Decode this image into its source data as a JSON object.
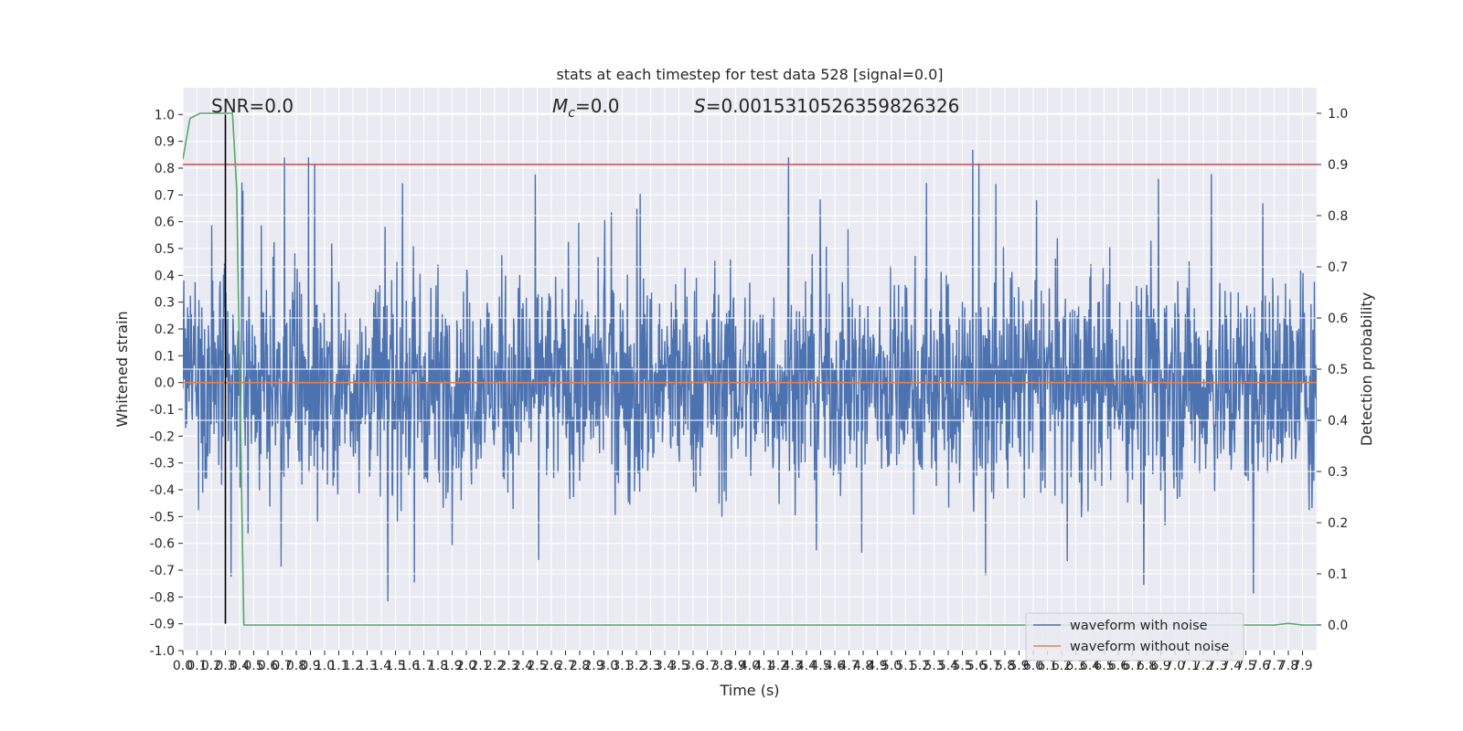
{
  "chart_data": {
    "type": "line",
    "title": "stats at each timestep for test data 528 [signal=0.0]",
    "xlabel": "Time (s)",
    "ylabel": "Whitened strain",
    "y2label": "Detection probability",
    "xlim": [
      0,
      8.0
    ],
    "ylim": [
      -1.0,
      1.1
    ],
    "y2lim": [
      -0.05,
      1.05
    ],
    "grid": true,
    "x_ticks": [
      "0.0",
      "0.1",
      "0.2",
      "0.3",
      "0.4",
      "0.5",
      "0.6",
      "0.7",
      "0.8",
      "0.9",
      "1.0",
      "1.1",
      "1.2",
      "1.3",
      "1.4",
      "1.5",
      "1.6",
      "1.7",
      "1.8",
      "1.9",
      "2.0",
      "2.1",
      "2.2",
      "2.3",
      "2.4",
      "2.5",
      "2.6",
      "2.7",
      "2.8",
      "2.9",
      "3.0",
      "3.1",
      "3.2",
      "3.3",
      "3.4",
      "3.5",
      "3.6",
      "3.7",
      "3.8",
      "3.9",
      "4.0",
      "4.1",
      "4.2",
      "4.3",
      "4.4",
      "4.5",
      "4.6",
      "4.7",
      "4.8",
      "4.9",
      "5.0",
      "5.1",
      "5.2",
      "5.3",
      "5.4",
      "5.5",
      "5.6",
      "5.7",
      "5.8",
      "5.9",
      "6.0",
      "6.1",
      "6.2",
      "6.3",
      "6.4",
      "6.5",
      "6.6",
      "6.7",
      "6.8",
      "6.9",
      "7.0",
      "7.1",
      "7.2",
      "7.3",
      "7.4",
      "7.5",
      "7.6",
      "7.7",
      "7.8",
      "7.9"
    ],
    "y_ticks": [
      "-1.0",
      "-0.9",
      "-0.8",
      "-0.7",
      "-0.6",
      "-0.5",
      "-0.4",
      "-0.3",
      "-0.2",
      "-0.1",
      "0.0",
      "0.1",
      "0.2",
      "0.3",
      "0.4",
      "0.5",
      "0.6",
      "0.7",
      "0.8",
      "0.9",
      "1.0"
    ],
    "y2_ticks": [
      "0.0",
      "0.1",
      "0.2",
      "0.3",
      "0.4",
      "0.5",
      "0.6",
      "0.7",
      "0.8",
      "0.9",
      "1.0"
    ],
    "annotations": {
      "snr_text": "SNR=0.0",
      "mc_symbol": "M",
      "mc_sub": "c",
      "mc_value": "=0.0",
      "s_symbol": "S",
      "s_value": "=0.0015310526359826326"
    },
    "series": [
      {
        "name": "waveform with noise",
        "axis": "left",
        "color": "#4c72b0",
        "description_points": {
          "x": [
            0.0,
            0.5,
            1.0,
            1.5,
            2.0,
            2.5,
            3.0,
            3.5,
            4.0,
            4.15,
            4.5,
            5.0,
            5.5,
            6.0,
            6.5,
            7.0,
            7.5,
            8.0
          ],
          "envelope_upper": [
            0.58,
            0.79,
            0.94,
            0.75,
            0.74,
            0.84,
            0.7,
            0.73,
            0.84,
            1.0,
            0.7,
            0.76,
            0.9,
            0.7,
            0.8,
            0.89,
            0.82,
            0.6
          ],
          "envelope_lower": [
            -0.57,
            -0.8,
            -0.7,
            -0.85,
            -0.7,
            -0.7,
            -0.85,
            -0.8,
            -0.76,
            -0.7,
            -0.7,
            -0.75,
            -0.89,
            -0.7,
            -0.8,
            -0.75,
            -0.9,
            -0.45
          ]
        }
      },
      {
        "name": "waveform without noise",
        "axis": "left",
        "color": "#dd8452",
        "x": [
          0.0,
          8.0
        ],
        "y": [
          0.0,
          0.0
        ]
      },
      {
        "axis": "right",
        "color": "#55a868",
        "x": [
          0.0,
          0.05,
          0.12,
          0.2,
          0.3,
          0.35,
          0.38,
          0.4,
          0.43,
          7.6,
          7.7,
          7.8,
          7.9,
          8.0
        ],
        "y": [
          0.91,
          0.99,
          1.0,
          1.0,
          1.0,
          1.0,
          0.85,
          0.5,
          0.0,
          0.0,
          0.0,
          0.003,
          0.0,
          0.0
        ]
      }
    ],
    "hlines": [
      {
        "axis": "right",
        "y": 0.9,
        "color": "#c44e52"
      }
    ],
    "vlines": [
      {
        "axis": "left",
        "x": 0.3,
        "y_from": -0.9,
        "y_to": 1.0,
        "color": "#000000"
      }
    ],
    "legend": {
      "location": "lower-right",
      "entries": [
        "waveform with noise",
        "waveform without noise"
      ]
    }
  }
}
